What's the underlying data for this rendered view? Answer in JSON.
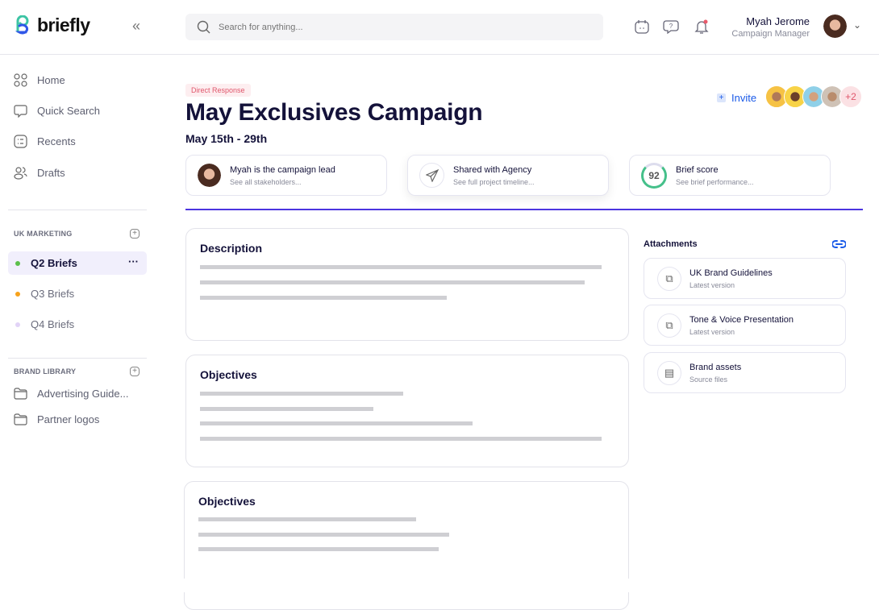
{
  "app": {
    "name": "briefly"
  },
  "header": {
    "search_placeholder": "Search for anything...",
    "user_name": "Myah Jerome",
    "user_role": "Campaign Manager"
  },
  "sidebar": {
    "nav": [
      {
        "label": "Home",
        "icon": "grid-icon"
      },
      {
        "label": "Quick Search",
        "icon": "chat-icon"
      },
      {
        "label": "Recents",
        "icon": "list-icon"
      },
      {
        "label": "Drafts",
        "icon": "users-icon"
      }
    ],
    "uk_marketing": {
      "title": "UK MARKETING",
      "items": [
        {
          "label": "Q2 Briefs",
          "color": "#5cc04c",
          "active": true
        },
        {
          "label": "Q3 Briefs",
          "color": "#f7a21b"
        },
        {
          "label": "Q4 Briefs",
          "color": "#e2d3f7"
        }
      ]
    },
    "brand_library": {
      "title": "BRAND LIBRARY",
      "items": [
        {
          "label": "Advertising Guide..."
        },
        {
          "label": "Partner logos"
        }
      ]
    }
  },
  "main": {
    "tag": "Direct Response",
    "title": "May Exclusives Campaign",
    "dates": "May 15th - 29th",
    "invite_label": "Invite",
    "extra_members": "+2",
    "info_cards": [
      {
        "title": "Myah is the campaign lead",
        "subtitle": "See all stakeholders..."
      },
      {
        "title": "Shared with Agency",
        "subtitle": "See full project timeline..."
      },
      {
        "title": "Brief score",
        "subtitle": "See brief performance...",
        "score": "92"
      }
    ],
    "sections": [
      {
        "title": "Description"
      },
      {
        "title": "Objectives"
      },
      {
        "title": "Objectives"
      }
    ],
    "attachments": {
      "title": "Attachments",
      "items": [
        {
          "title": "UK Brand Guidelines",
          "subtitle": "Latest version"
        },
        {
          "title": "Tone & Voice Presentation",
          "subtitle": "Latest version"
        },
        {
          "title": "Brand assets",
          "subtitle": "Source files"
        }
      ]
    }
  },
  "colors": {
    "accent": "#4c35e0",
    "link": "#1a5ae8",
    "score": "#45c08a"
  }
}
